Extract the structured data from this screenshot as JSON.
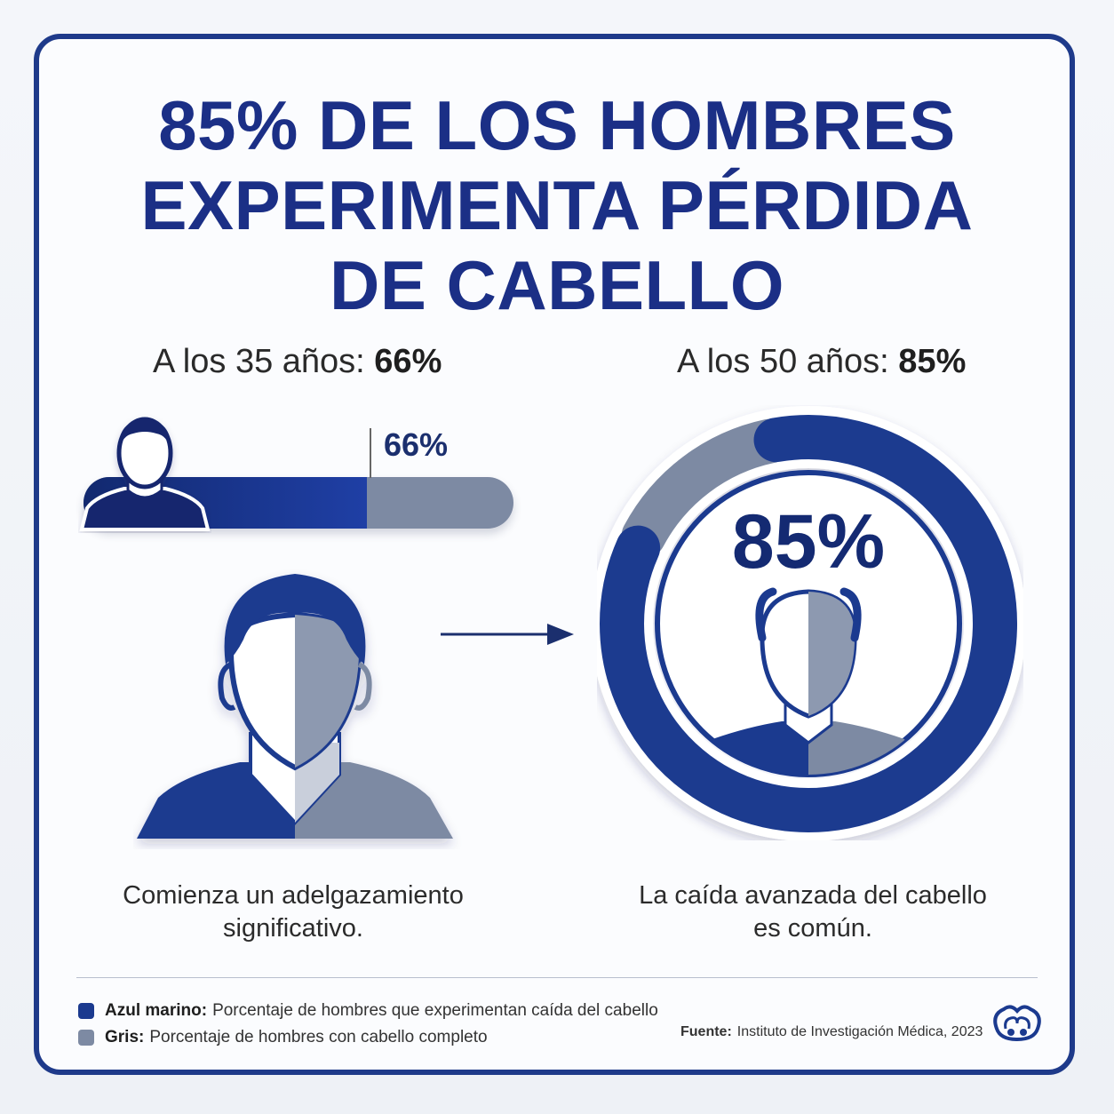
{
  "title": {
    "line1": "85% DE LOS HOMBRES",
    "line2": "EXPERIMENTA PÉRDIDA",
    "line3": "DE CABELLO"
  },
  "left": {
    "header_prefix": "A los 35 años: ",
    "header_value": "66%",
    "bar_label": "66%",
    "caption_line1": "Comienza un adelgazamiento",
    "caption_line2": "significativo."
  },
  "right": {
    "header_prefix": "A los 50 años: ",
    "header_value": "85%",
    "donut_label": "85%",
    "caption_line1": "La caída avanzada del cabello",
    "caption_line2": "es común."
  },
  "legend": {
    "navy_key": "Azul marino:",
    "navy_text": "Porcentaje de hombres que experimentan caída del cabello",
    "gray_key": "Gris:",
    "gray_text": "Porcentaje de hombres con cabello completo"
  },
  "source": {
    "key": "Fuente:",
    "text": "Instituto de Investigación Médica, 2023"
  },
  "colors": {
    "navy": "#1b3a8f",
    "navy_dark": "#12296f",
    "gray": "#7d8aa3",
    "frame": "#1e3a8a"
  },
  "icons": [
    "person-icon",
    "arrow-right-icon",
    "logo-icon"
  ],
  "chart_data": [
    {
      "type": "bar",
      "categories": [
        "A los 35 años"
      ],
      "series": [
        {
          "name": "Azul marino",
          "values": [
            66
          ]
        },
        {
          "name": "Gris",
          "values": [
            34
          ]
        }
      ],
      "ylim": [
        0,
        100
      ]
    },
    {
      "type": "pie",
      "categories": [
        "Azul marino",
        "Gris"
      ],
      "values": [
        85,
        15
      ]
    }
  ]
}
